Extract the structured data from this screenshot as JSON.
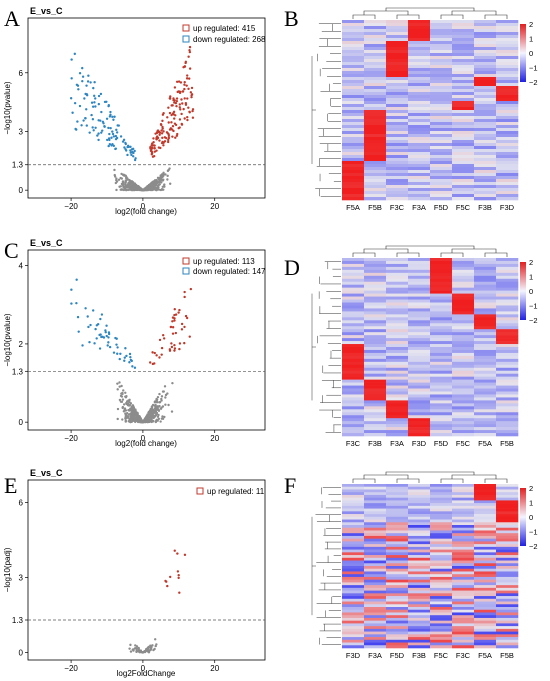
{
  "panels": {
    "A": {
      "letter": "A",
      "title": "E_vs_C",
      "xlabel": "log2(fold change)",
      "ylabel": "−log10(pvalue)",
      "legend_up": "up regulated: 415",
      "legend_down": "down regulated: 268"
    },
    "B": {
      "letter": "B",
      "columns": [
        "F5A",
        "F5B",
        "F3C",
        "F3A",
        "F5D",
        "F5C",
        "F3B",
        "F3D"
      ]
    },
    "C": {
      "letter": "C",
      "title": "E_vs_C",
      "xlabel": "log2(fold change)",
      "ylabel": "−log10(pvalue)",
      "legend_up": "up regulated: 113",
      "legend_down": "down regulated: 147"
    },
    "D": {
      "letter": "D",
      "columns": [
        "F3C",
        "F3B",
        "F3A",
        "F3D",
        "F5D",
        "F5C",
        "F5A",
        "F5B"
      ]
    },
    "E": {
      "letter": "E",
      "title": "E_vs_C",
      "xlabel": "log2FoldChange",
      "ylabel": "−log10(padj)",
      "legend_up": "up regulated: 11"
    },
    "F": {
      "letter": "F",
      "columns": [
        "F3D",
        "F3A",
        "F5D",
        "F3B",
        "F5C",
        "F3C",
        "F5A",
        "F5B"
      ]
    },
    "colorbar_ticks": [
      "2",
      "1",
      "0",
      "−1",
      "−2"
    ]
  },
  "chart_data": [
    {
      "type": "scatter",
      "panel": "A",
      "title": "E_vs_C",
      "xlabel": "log2(fold change)",
      "ylabel": "−log10(pvalue)",
      "xticks": [
        "−20",
        "0",
        "20"
      ],
      "yticks": [
        "0",
        "1.3",
        "3",
        "6"
      ],
      "xlim": [
        -32,
        34
      ],
      "ylim": [
        -0.4,
        8.8
      ],
      "threshold": 1.3,
      "series": [
        {
          "name": "up regulated: 415",
          "color": "#c0392b"
        },
        {
          "name": "down regulated: 268",
          "color": "#2e86c1"
        }
      ],
      "legend": "top-right"
    },
    {
      "type": "scatter",
      "panel": "C",
      "title": "E_vs_C",
      "xlabel": "log2(fold change)",
      "ylabel": "−log10(pvalue)",
      "xticks": [
        "−20",
        "0",
        "20"
      ],
      "yticks": [
        "0",
        "1.3",
        "2",
        "4"
      ],
      "xlim": [
        -32,
        34
      ],
      "ylim": [
        -0.2,
        4.4
      ],
      "threshold": 1.3,
      "series": [
        {
          "name": "up regulated: 113",
          "color": "#c0392b"
        },
        {
          "name": "down regulated: 147",
          "color": "#2e86c1"
        }
      ],
      "legend": "top-right"
    },
    {
      "type": "scatter",
      "panel": "E",
      "title": "E_vs_C",
      "xlabel": "log2FoldChange",
      "ylabel": "−log10(padj)",
      "xticks": [
        "−20",
        "0",
        "20"
      ],
      "yticks": [
        "0",
        "1.3",
        "3",
        "6"
      ],
      "xlim": [
        -32,
        34
      ],
      "ylim": [
        -0.3,
        6.9
      ],
      "threshold": 1.3,
      "series": [
        {
          "name": "up regulated: 11",
          "color": "#c0392b"
        }
      ],
      "legend": "top-right"
    },
    {
      "type": "heatmap",
      "panel": "B",
      "columns": [
        "F5A",
        "F5B",
        "F3C",
        "F3A",
        "F5D",
        "F5C",
        "F3B",
        "F3D"
      ],
      "colorbar": [
        -2,
        2
      ]
    },
    {
      "type": "heatmap",
      "panel": "D",
      "columns": [
        "F3C",
        "F3B",
        "F3A",
        "F3D",
        "F5D",
        "F5C",
        "F5A",
        "F5B"
      ],
      "colorbar": [
        -2,
        2
      ]
    },
    {
      "type": "heatmap",
      "panel": "F",
      "columns": [
        "F3D",
        "F3A",
        "F5D",
        "F3B",
        "F5C",
        "F3C",
        "F5A",
        "F5B"
      ],
      "colorbar": [
        -2,
        2
      ]
    }
  ],
  "colors": {
    "up": "#c0392b",
    "down": "#2e86c1",
    "ns": "#8c8c8c",
    "heat_high": "#e02020",
    "heat_low": "#2020e0"
  }
}
